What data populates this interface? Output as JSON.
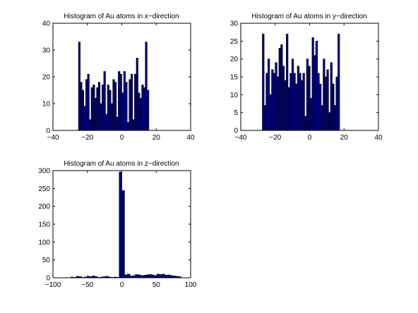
{
  "colors": {
    "bar_fill": "#000080",
    "bar_edge": "#000000",
    "axes": "#000000",
    "background": "#ffffff"
  },
  "chart_data": [
    {
      "type": "bar",
      "title": "Histogram of Au atoms in x−direction",
      "xlim": [
        -40,
        40
      ],
      "ylim": [
        0,
        40
      ],
      "xticks": [
        "−40",
        "−20",
        "0",
        "20",
        "40"
      ],
      "yticks": [
        "0",
        "10",
        "20",
        "30",
        "40"
      ],
      "bin_start": -25.2,
      "bin_width": 1.05,
      "values": [
        33,
        18,
        15,
        9,
        19,
        21,
        4,
        16,
        17,
        12,
        16,
        18,
        10,
        17,
        22,
        6,
        17,
        15,
        10,
        19,
        18,
        5,
        22,
        21,
        14,
        22,
        18,
        3,
        19,
        21,
        4,
        21,
        27,
        14,
        12,
        17,
        16,
        33,
        15
      ],
      "grid": false
    },
    {
      "type": "bar",
      "title": "Histogram of Au atoms in y−direction",
      "xlim": [
        -40,
        40
      ],
      "ylim": [
        0,
        30
      ],
      "xticks": [
        "−40",
        "−20",
        "0",
        "20",
        "40"
      ],
      "yticks": [
        "0",
        "5",
        "10",
        "15",
        "20",
        "25",
        "30"
      ],
      "bin_start": -27.5,
      "bin_width": 1.07,
      "values": [
        27,
        7,
        16,
        20,
        10,
        17,
        16,
        19,
        15,
        23,
        24,
        18,
        14,
        27,
        12,
        16,
        20,
        16,
        13,
        18,
        16,
        14,
        16,
        4,
        20,
        18,
        9,
        26,
        21,
        25,
        16,
        13,
        7,
        20,
        15,
        17,
        5,
        19,
        13,
        7,
        15,
        27
      ],
      "grid": false
    },
    {
      "type": "bar",
      "title": "Histogram of Au atoms in z−direction",
      "xlim": [
        -100,
        100
      ],
      "ylim": [
        0,
        300
      ],
      "xticks": [
        "−100",
        "−50",
        "0",
        "50",
        "100"
      ],
      "yticks": [
        "0",
        "50",
        "100",
        "150",
        "200",
        "250",
        "300"
      ],
      "bin_start": -74,
      "bin_width": 3.9,
      "values": [
        2,
        1,
        4,
        3,
        1,
        2,
        4,
        3,
        5,
        3,
        1,
        2,
        3,
        4,
        2,
        1,
        2,
        1,
        296,
        244,
        8,
        10,
        5,
        6,
        9,
        8,
        6,
        7,
        8,
        9,
        8,
        6,
        10,
        9,
        10,
        7,
        8,
        6,
        5,
        4,
        3
      ],
      "grid": false
    }
  ]
}
